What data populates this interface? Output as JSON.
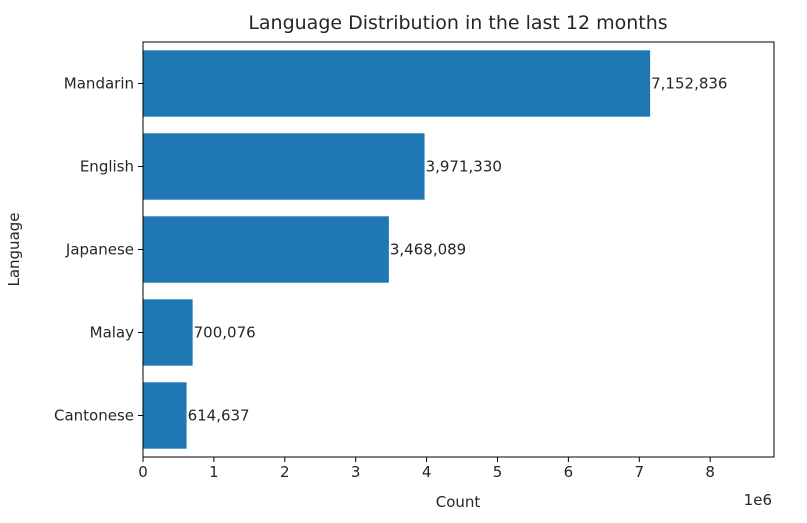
{
  "chart_data": {
    "type": "bar",
    "orientation": "horizontal",
    "title": "Language Distribution in the last 12 months",
    "xlabel": "Count",
    "ylabel": "Language",
    "x_scale_label": "1e6",
    "xlim": [
      0,
      8900000
    ],
    "xticks": [
      0,
      1,
      2,
      3,
      4,
      5,
      6,
      7,
      8
    ],
    "categories": [
      "Mandarin",
      "English",
      "Japanese",
      "Malay",
      "Cantonese"
    ],
    "values": [
      7152836,
      3971330,
      3468089,
      700076,
      614637
    ],
    "value_labels": [
      "7,152,836",
      "3,971,330",
      "3,468,089",
      "700,076",
      "614,637"
    ],
    "bar_color": "#1f77b4",
    "grid": false,
    "legend": "none"
  }
}
